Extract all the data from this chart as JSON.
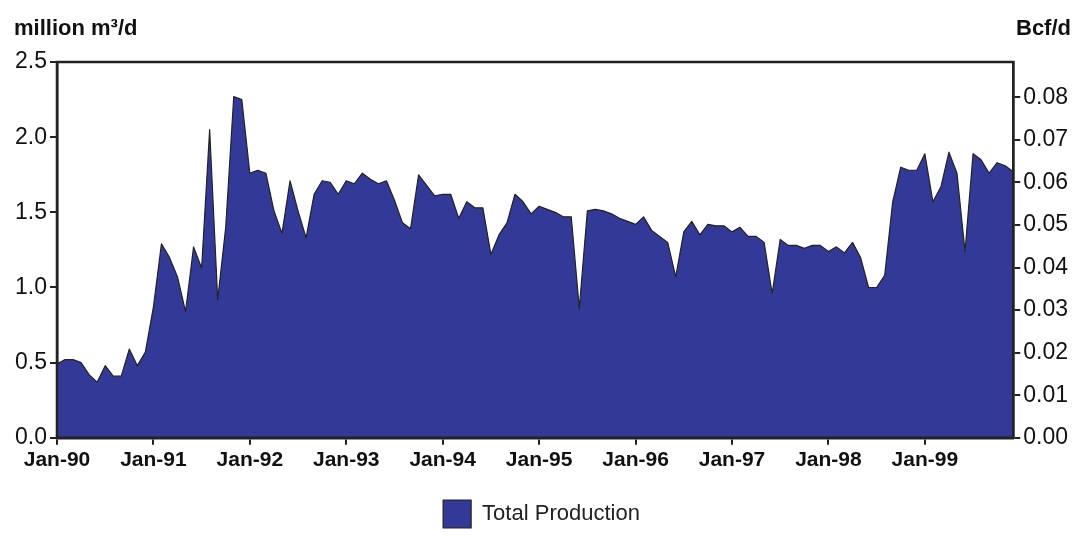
{
  "chart_data": {
    "type": "area",
    "ylabel": "million m³/d",
    "y2label": "Bcf/d",
    "legend": "bottom",
    "x": [
      "1990-01",
      "1990-02",
      "1990-03",
      "1990-04",
      "1990-05",
      "1990-06",
      "1990-07",
      "1990-08",
      "1990-09",
      "1990-10",
      "1990-11",
      "1990-12",
      "1991-01",
      "1991-02",
      "1991-03",
      "1991-04",
      "1991-05",
      "1991-06",
      "1991-07",
      "1991-08",
      "1991-09",
      "1991-10",
      "1991-11",
      "1991-12",
      "1992-01",
      "1992-02",
      "1992-03",
      "1992-04",
      "1992-05",
      "1992-06",
      "1992-07",
      "1992-08",
      "1992-09",
      "1992-10",
      "1992-11",
      "1992-12",
      "1993-01",
      "1993-02",
      "1993-03",
      "1993-04",
      "1993-05",
      "1993-06",
      "1993-07",
      "1993-08",
      "1993-09",
      "1993-10",
      "1993-11",
      "1993-12",
      "1994-01",
      "1994-02",
      "1994-03",
      "1994-04",
      "1994-05",
      "1994-06",
      "1994-07",
      "1994-08",
      "1994-09",
      "1994-10",
      "1994-11",
      "1994-12",
      "1995-01",
      "1995-02",
      "1995-03",
      "1995-04",
      "1995-05",
      "1995-06",
      "1995-07",
      "1995-08",
      "1995-09",
      "1995-10",
      "1995-11",
      "1995-12",
      "1996-01",
      "1996-02",
      "1996-03",
      "1996-04",
      "1996-05",
      "1996-06",
      "1996-07",
      "1996-08",
      "1996-09",
      "1996-10",
      "1996-11",
      "1996-12",
      "1997-01",
      "1997-02",
      "1997-03",
      "1997-04",
      "1997-05",
      "1997-06",
      "1997-07",
      "1997-08",
      "1997-09",
      "1997-10",
      "1997-11",
      "1997-12",
      "1998-01",
      "1998-02",
      "1998-03",
      "1998-04",
      "1998-05",
      "1998-06",
      "1998-07",
      "1998-08",
      "1998-09",
      "1998-10",
      "1998-11",
      "1998-12",
      "1999-01",
      "1999-02",
      "1999-03",
      "1999-04",
      "1999-05",
      "1999-06",
      "1999-07",
      "1999-08",
      "1999-09",
      "1999-10",
      "1999-11",
      "1999-12"
    ],
    "series": [
      {
        "name": "Total Production",
        "color": "#333996",
        "values": [
          0.49,
          0.52,
          0.52,
          0.5,
          0.42,
          0.37,
          0.48,
          0.41,
          0.41,
          0.59,
          0.48,
          0.57,
          0.87,
          1.29,
          1.2,
          1.07,
          0.84,
          1.27,
          1.13,
          2.05,
          0.92,
          1.4,
          2.27,
          2.25,
          1.76,
          1.78,
          1.76,
          1.51,
          1.36,
          1.71,
          1.51,
          1.33,
          1.62,
          1.71,
          1.7,
          1.62,
          1.71,
          1.69,
          1.76,
          1.72,
          1.69,
          1.71,
          1.58,
          1.43,
          1.39,
          1.75,
          1.68,
          1.61,
          1.62,
          1.62,
          1.46,
          1.57,
          1.53,
          1.53,
          1.22,
          1.35,
          1.43,
          1.62,
          1.57,
          1.49,
          1.54,
          1.52,
          1.5,
          1.47,
          1.47,
          0.86,
          1.51,
          1.52,
          1.51,
          1.49,
          1.46,
          1.44,
          1.42,
          1.47,
          1.38,
          1.34,
          1.3,
          1.07,
          1.37,
          1.44,
          1.35,
          1.42,
          1.41,
          1.41,
          1.37,
          1.4,
          1.34,
          1.34,
          1.3,
          0.96,
          1.32,
          1.28,
          1.28,
          1.26,
          1.28,
          1.28,
          1.24,
          1.27,
          1.23,
          1.3,
          1.2,
          1.0,
          1.0,
          1.08,
          1.57,
          1.8,
          1.78,
          1.78,
          1.89,
          1.57,
          1.67,
          1.9,
          1.76,
          1.24,
          1.89,
          1.85,
          1.76,
          1.83,
          1.81,
          1.77
        ]
      }
    ],
    "xlim": [
      "1990-01",
      "1999-12"
    ],
    "xticks": [
      {
        "value": "1990-01",
        "label": "Jan-90"
      },
      {
        "value": "1991-01",
        "label": "Jan-91"
      },
      {
        "value": "1992-01",
        "label": "Jan-92"
      },
      {
        "value": "1993-01",
        "label": "Jan-93"
      },
      {
        "value": "1994-01",
        "label": "Jan-94"
      },
      {
        "value": "1995-01",
        "label": "Jan-95"
      },
      {
        "value": "1996-01",
        "label": "Jan-96"
      },
      {
        "value": "1997-01",
        "label": "Jan-97"
      },
      {
        "value": "1998-01",
        "label": "Jan-98"
      },
      {
        "value": "1999-01",
        "label": "Jan-99"
      }
    ],
    "ylim": [
      0,
      2.5
    ],
    "yticks": [
      {
        "value": 0,
        "label": "0.0"
      },
      {
        "value": 0.5,
        "label": "0.5"
      },
      {
        "value": 1,
        "label": "1.0"
      },
      {
        "value": 1.5,
        "label": "1.5"
      },
      {
        "value": 2,
        "label": "2.0"
      },
      {
        "value": 2.5,
        "label": "2.5"
      }
    ],
    "y2lim": [
      0,
      0.0883
    ],
    "y2ticks": [
      {
        "value": 0,
        "label": "0.00"
      },
      {
        "value": 0.01,
        "label": "0.01"
      },
      {
        "value": 0.02,
        "label": "0.02"
      },
      {
        "value": 0.03,
        "label": "0.03"
      },
      {
        "value": 0.04,
        "label": "0.04"
      },
      {
        "value": 0.05,
        "label": "0.05"
      },
      {
        "value": 0.06,
        "label": "0.06"
      },
      {
        "value": 0.07,
        "label": "0.07"
      },
      {
        "value": 0.08,
        "label": "0.08"
      }
    ]
  }
}
